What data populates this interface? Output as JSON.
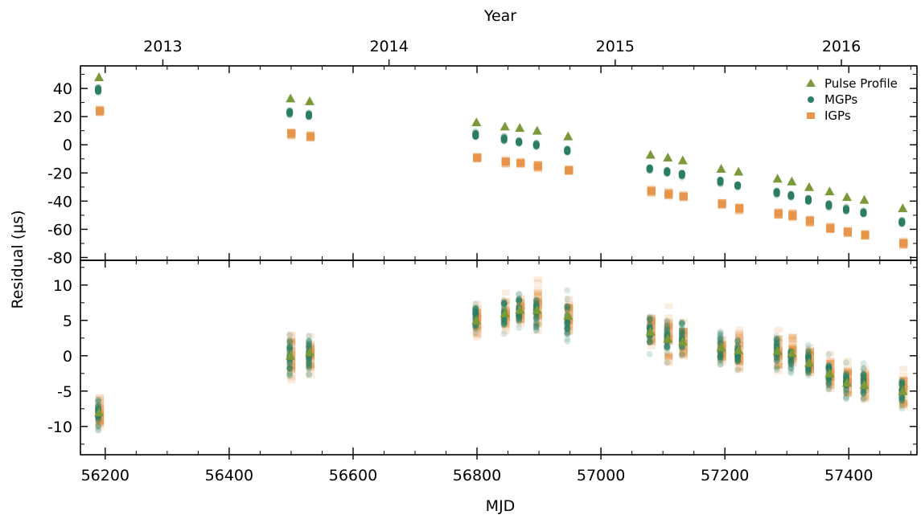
{
  "chart_data": {
    "type": "scatter",
    "top_axis": {
      "label": "Year",
      "ticks": [
        "2013",
        "2014",
        "2015",
        "2016"
      ],
      "tick_mjd": [
        56293,
        56658,
        57023,
        57388
      ]
    },
    "xlabel": "MJD",
    "ylabel": "Residual (μs)",
    "xlim": [
      56160,
      57510
    ],
    "x_ticks": [
      56200,
      56400,
      56600,
      56800,
      57000,
      57200,
      57400
    ],
    "legend": {
      "placement": "upper-right",
      "entries": [
        "Pulse Profile",
        "MGPs",
        "IGPs"
      ]
    },
    "colors": {
      "pulse_profile": "#7a9a3a",
      "mgps": "#2a7f62",
      "igps": "#e8954a"
    },
    "epochs_mjd": [
      56190,
      56499,
      56530,
      56799,
      56845,
      56869,
      56897,
      56947,
      57080,
      57108,
      57132,
      57194,
      57222,
      57285,
      57308,
      57336,
      57369,
      57397,
      57425,
      57487
    ],
    "panels": [
      {
        "name": "top",
        "ylim": [
          -82,
          56
        ],
        "y_ticks": [
          40,
          20,
          0,
          -20,
          -40,
          -60,
          -80
        ],
        "series": [
          {
            "name": "Pulse Profile",
            "marker": "triangle",
            "y": [
              48,
              33,
              31,
              16,
              13,
              12,
              10,
              6,
              -7,
              -9,
              -11,
              -17,
              -19,
              -24,
              -26,
              -30,
              -33,
              -37,
              -39,
              -45
            ]
          },
          {
            "name": "MGPs",
            "marker": "circle",
            "center": [
              39,
              23,
              21,
              7,
              4,
              2,
              0,
              -4,
              -17,
              -19,
              -21,
              -26,
              -29,
              -34,
              -36,
              -39,
              -43,
              -46,
              -48,
              -55
            ],
            "spread": [
              3,
              2.5,
              2.5,
              3,
              2.5,
              2.5,
              2.5,
              2.5,
              2.5,
              2.5,
              2.5,
              2.5,
              2.5,
              2.5,
              2.5,
              2.5,
              2.5,
              2.5,
              2.5,
              2.5
            ]
          },
          {
            "name": "IGPs",
            "marker": "square",
            "center": [
              24,
              8,
              6,
              -9,
              -12,
              -13,
              -15,
              -18,
              -33,
              -35,
              -37,
              -42,
              -45,
              -49,
              -50,
              -54,
              -59,
              -62,
              -64,
              -70
            ],
            "spread": [
              3,
              3,
              3,
              2.5,
              3,
              2.5,
              3,
              2.5,
              3,
              3,
              2.5,
              3,
              3,
              3,
              3,
              3,
              3,
              3,
              3,
              3
            ]
          }
        ]
      },
      {
        "name": "bottom",
        "ylim": [
          -14,
          13.5
        ],
        "y_ticks": [
          10,
          5,
          0,
          -5,
          -10
        ],
        "series": [
          {
            "name": "Pulse Profile",
            "marker": "triangle",
            "y": [
              -8,
              0,
              0.5,
              5,
              6,
              6.5,
              6.5,
              5.7,
              3.4,
              2.4,
              2.0,
              1.2,
              0.8,
              0.7,
              0.4,
              -1.0,
              -2.5,
              -3.8,
              -4.1,
              -5.0
            ]
          },
          {
            "name": "MGPs",
            "marker": "circle",
            "center": [
              -8,
              0,
              0.2,
              5.5,
              6,
              6.5,
              6,
              5.5,
              3.5,
              2.5,
              2,
              1,
              0.5,
              0.5,
              0,
              -1,
              -2.5,
              -3.5,
              -4,
              -5
            ],
            "spread": [
              4,
              4.5,
              4,
              3.5,
              3.5,
              3.5,
              4.5,
              5,
              3.5,
              4,
              4,
              3.5,
              3.5,
              4,
              3.5,
              3,
              3.5,
              4,
              4,
              3.5
            ]
          },
          {
            "name": "IGPs",
            "marker": "square",
            "center": [
              -8,
              0,
              0.3,
              5,
              6,
              6.5,
              6.5,
              5.8,
              3.5,
              2.5,
              2,
              1.2,
              0.8,
              0.6,
              0.3,
              -0.8,
              -2.5,
              -3.8,
              -4.2,
              -5
            ],
            "spread": [
              3.5,
              4.5,
              3.5,
              3.5,
              3.5,
              3,
              5,
              3.5,
              4,
              5.5,
              3.5,
              3.5,
              4.5,
              4.5,
              4,
              3.5,
              4,
              4,
              3.5,
              4
            ]
          }
        ]
      }
    ]
  }
}
